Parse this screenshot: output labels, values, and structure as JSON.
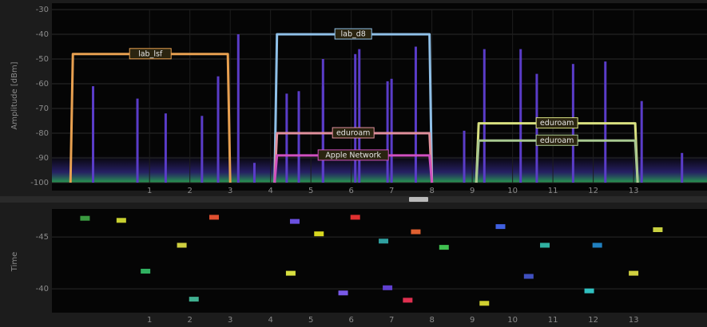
{
  "chart_data": {
    "type": "spectrum",
    "y_label": "Amplitude [dBm]",
    "time_label": "Time",
    "xlim": [
      -1.42,
      14.82
    ],
    "xticks": [
      1,
      2,
      3,
      4,
      5,
      6,
      7,
      8,
      9,
      10,
      11,
      12,
      13
    ],
    "ylim": [
      -100,
      -30
    ],
    "yticks": [
      -100,
      -90,
      -80,
      -70,
      -60,
      -50,
      -40,
      -30
    ],
    "tlim": [
      -47.7,
      -37.7
    ],
    "tticks": [
      -45,
      -40
    ],
    "networks": [
      {
        "name": "lab_lsf",
        "color": "#e8a050",
        "start": -0.96,
        "end": 3.0,
        "peak": -48
      },
      {
        "name": "lab_d8",
        "color": "#8fc0e8",
        "start": 4.1,
        "end": 8.0,
        "peak": -40
      },
      {
        "name": "eduroam",
        "color": "#e0909c",
        "start": 4.1,
        "end": 8.0,
        "peak": -80
      },
      {
        "name": "Apple Network",
        "color": "#d050c0",
        "start": 4.1,
        "end": 8.0,
        "peak": -89
      },
      {
        "name": "eduroam",
        "color": "#d8e080",
        "start": 9.1,
        "end": 13.1,
        "peak": -76
      },
      {
        "name": "eduroam",
        "color": "#a8c890",
        "start": 9.1,
        "end": 13.1,
        "peak": -83
      }
    ],
    "spikes": {
      "color": "#5a3cc8",
      "channel": [
        -0.4,
        0.7,
        1.4,
        2.3,
        2.7,
        3.2,
        3.6,
        4.4,
        4.7,
        5.3,
        5.3,
        6.1,
        6.2,
        6.9,
        7.0,
        7.6,
        8.8,
        9.3,
        10.2,
        10.6,
        11.5,
        12.3,
        13.2,
        14.2
      ],
      "values": [
        -61,
        -66,
        -72,
        -73,
        -57,
        -40,
        -92,
        -64,
        -63,
        -50,
        -61,
        -48,
        -46,
        -59,
        -58,
        -45,
        -79,
        -46,
        -46,
        -56,
        -52,
        -51,
        -67,
        -88
      ]
    },
    "waterfall": [
      {
        "channel": -0.6,
        "time": -46.8,
        "color": "#3a9a40"
      },
      {
        "channel": 0.3,
        "time": -46.6,
        "color": "#c8d030"
      },
      {
        "channel": 1.8,
        "time": -44.2,
        "color": "#d0d040"
      },
      {
        "channel": 2.6,
        "time": -46.9,
        "color": "#e05030"
      },
      {
        "channel": 4.6,
        "time": -46.5,
        "color": "#6a50e0"
      },
      {
        "channel": 5.2,
        "time": -45.3,
        "color": "#d8d820"
      },
      {
        "channel": 6.1,
        "time": -46.9,
        "color": "#e03030"
      },
      {
        "channel": 6.8,
        "time": -44.6,
        "color": "#30a0a0"
      },
      {
        "channel": 7.6,
        "time": -45.5,
        "color": "#e06030"
      },
      {
        "channel": 8.3,
        "time": -44.0,
        "color": "#40c050"
      },
      {
        "channel": 9.7,
        "time": -46.0,
        "color": "#4060e0"
      },
      {
        "channel": 10.8,
        "time": -44.2,
        "color": "#30b0a0"
      },
      {
        "channel": 12.1,
        "time": -44.2,
        "color": "#2080c0"
      },
      {
        "channel": 13.6,
        "time": -45.7,
        "color": "#c8d040"
      },
      {
        "channel": 0.9,
        "time": -41.7,
        "color": "#30b060"
      },
      {
        "channel": 2.1,
        "time": -39.0,
        "color": "#40b090"
      },
      {
        "channel": 4.5,
        "time": -41.5,
        "color": "#d8e040"
      },
      {
        "channel": 5.8,
        "time": -39.6,
        "color": "#7a5ae8"
      },
      {
        "channel": 6.9,
        "time": -40.1,
        "color": "#6040d0"
      },
      {
        "channel": 7.4,
        "time": -38.9,
        "color": "#e03050"
      },
      {
        "channel": 9.3,
        "time": -38.6,
        "color": "#d0d030"
      },
      {
        "channel": 10.4,
        "time": -41.2,
        "color": "#4050c0"
      },
      {
        "channel": 11.9,
        "time": -39.8,
        "color": "#30c0c0"
      },
      {
        "channel": 13.0,
        "time": -41.5,
        "color": "#d0d040"
      }
    ]
  }
}
